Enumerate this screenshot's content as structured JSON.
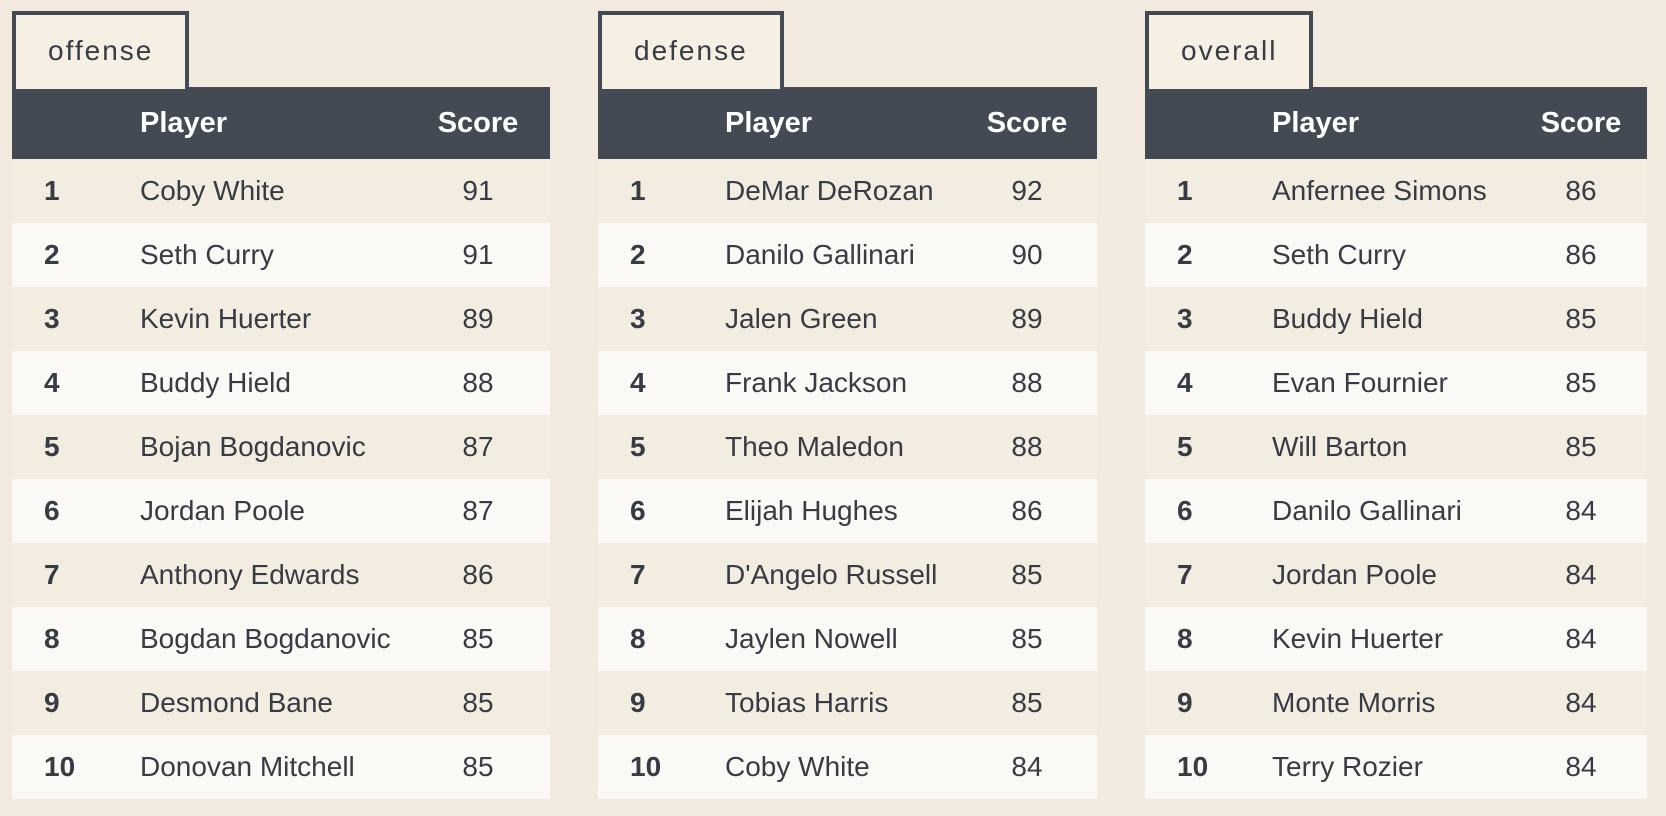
{
  "colors": {
    "background": "#f2eadf",
    "header_bg": "#434a53",
    "header_text": "#ffffff",
    "row_odd": "#f3ece0",
    "row_even": "#fbf9f5",
    "text": "#363b44"
  },
  "headers": {
    "player": "Player",
    "score": "Score"
  },
  "tables": [
    {
      "tab": "offense",
      "rows": [
        {
          "rank": "1",
          "player": "Coby White",
          "score": "91"
        },
        {
          "rank": "2",
          "player": "Seth Curry",
          "score": "91"
        },
        {
          "rank": "3",
          "player": "Kevin Huerter",
          "score": "89"
        },
        {
          "rank": "4",
          "player": "Buddy Hield",
          "score": "88"
        },
        {
          "rank": "5",
          "player": "Bojan Bogdanovic",
          "score": "87"
        },
        {
          "rank": "6",
          "player": "Jordan Poole",
          "score": "87"
        },
        {
          "rank": "7",
          "player": "Anthony Edwards",
          "score": "86"
        },
        {
          "rank": "8",
          "player": "Bogdan Bogdanovic",
          "score": "85"
        },
        {
          "rank": "9",
          "player": "Desmond Bane",
          "score": "85"
        },
        {
          "rank": "10",
          "player": "Donovan Mitchell",
          "score": "85"
        }
      ]
    },
    {
      "tab": "defense",
      "rows": [
        {
          "rank": "1",
          "player": "DeMar DeRozan",
          "score": "92"
        },
        {
          "rank": "2",
          "player": "Danilo Gallinari",
          "score": "90"
        },
        {
          "rank": "3",
          "player": "Jalen Green",
          "score": "89"
        },
        {
          "rank": "4",
          "player": "Frank Jackson",
          "score": "88"
        },
        {
          "rank": "5",
          "player": "Theo Maledon",
          "score": "88"
        },
        {
          "rank": "6",
          "player": "Elijah Hughes",
          "score": "86"
        },
        {
          "rank": "7",
          "player": "D'Angelo Russell",
          "score": "85"
        },
        {
          "rank": "8",
          "player": "Jaylen Nowell",
          "score": "85"
        },
        {
          "rank": "9",
          "player": "Tobias Harris",
          "score": "85"
        },
        {
          "rank": "10",
          "player": "Coby White",
          "score": "84"
        }
      ]
    },
    {
      "tab": "overall",
      "rows": [
        {
          "rank": "1",
          "player": "Anfernee Simons",
          "score": "86"
        },
        {
          "rank": "2",
          "player": "Seth Curry",
          "score": "86"
        },
        {
          "rank": "3",
          "player": "Buddy Hield",
          "score": "85"
        },
        {
          "rank": "4",
          "player": "Evan Fournier",
          "score": "85"
        },
        {
          "rank": "5",
          "player": "Will Barton",
          "score": "85"
        },
        {
          "rank": "6",
          "player": "Danilo Gallinari",
          "score": "84"
        },
        {
          "rank": "7",
          "player": "Jordan Poole",
          "score": "84"
        },
        {
          "rank": "8",
          "player": "Kevin Huerter",
          "score": "84"
        },
        {
          "rank": "9",
          "player": "Monte Morris",
          "score": "84"
        },
        {
          "rank": "10",
          "player": "Terry Rozier",
          "score": "84"
        }
      ]
    }
  ]
}
